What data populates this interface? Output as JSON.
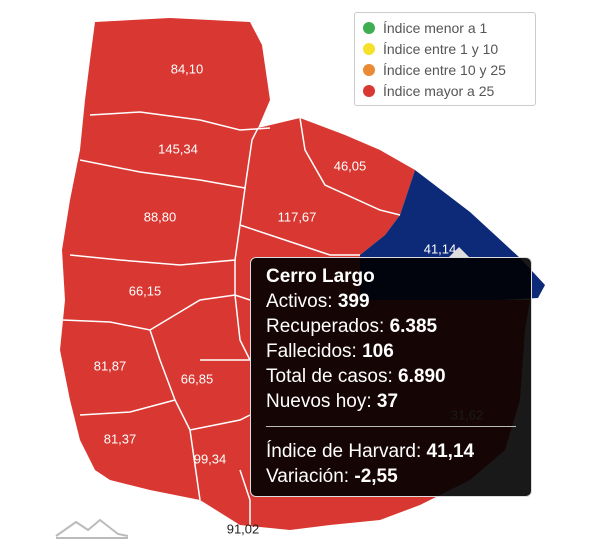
{
  "legend": [
    {
      "label": "Índice menor a 1",
      "color": "#3fae52"
    },
    {
      "label": "Índice entre 1 y 10",
      "color": "#f5e12b"
    },
    {
      "label": "Índice entre 10 y 25",
      "color": "#ea8a35"
    },
    {
      "label": "Índice mayor a 25",
      "color": "#d93832"
    }
  ],
  "regions": [
    {
      "label": "84,10",
      "color": "#d93832"
    },
    {
      "label": "145,34",
      "color": "#d93832"
    },
    {
      "label": "46,05",
      "color": "#d93832"
    },
    {
      "label": "88,80",
      "color": "#d93832"
    },
    {
      "label": "117,67",
      "color": "#d93832"
    },
    {
      "label": "41,14",
      "color": "#0d2a78"
    },
    {
      "label": "66,15",
      "color": "#d93832"
    },
    {
      "label": "81,87",
      "color": "#d93832"
    },
    {
      "label": "66,85",
      "color": "#d93832"
    },
    {
      "label": "81,37",
      "color": "#d93832"
    },
    {
      "label": "99,34",
      "color": "#d93832"
    },
    {
      "label": "91,02",
      "color": "#d93832"
    },
    {
      "label": "31,62",
      "color": "#d93832"
    }
  ],
  "tooltip": {
    "title": "Cerro Largo",
    "rows": [
      {
        "label": "Activos:",
        "value": "399"
      },
      {
        "label": "Recuperados:",
        "value": "6.385"
      },
      {
        "label": "Fallecidos:",
        "value": "106"
      },
      {
        "label": "Total de casos:",
        "value": "6.890"
      },
      {
        "label": "Nuevos hoy:",
        "value": "37"
      }
    ],
    "summary": [
      {
        "label": "Índice de Harvard:",
        "value": "41,14"
      },
      {
        "label": "Variación:",
        "value": "-2,55"
      }
    ]
  }
}
